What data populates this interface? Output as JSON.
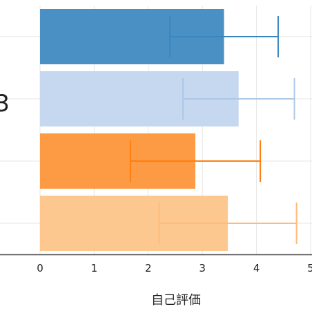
{
  "chart_data": {
    "type": "bar",
    "orientation": "horizontal",
    "xlabel": "自己評価",
    "xlim": [
      0,
      5
    ],
    "xticks": [
      0,
      1,
      2,
      3,
      4,
      5
    ],
    "grid": true,
    "left_label_fragment": "3",
    "bars": [
      {
        "value": 3.4,
        "error": 1.0,
        "color": "#3a86c1",
        "fill": "#4a90c4"
      },
      {
        "value": 3.67,
        "error": 1.03,
        "color": "#aec7e8",
        "fill": "#c6d7f0"
      },
      {
        "value": 2.87,
        "error": 1.2,
        "color": "#ff7f0e",
        "fill": "#fd9a44"
      },
      {
        "value": 3.47,
        "error": 1.27,
        "color": "#ffbb78",
        "fill": "#fdc790"
      }
    ]
  }
}
